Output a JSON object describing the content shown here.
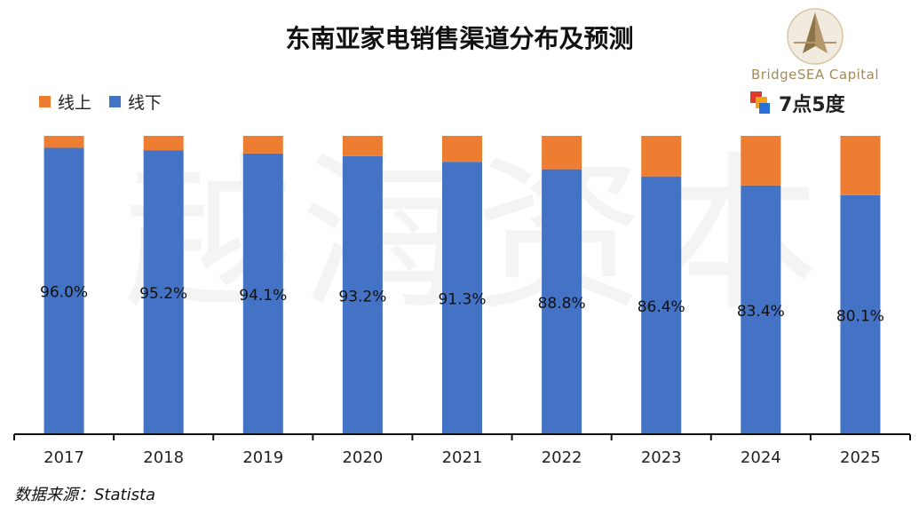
{
  "chart_data": {
    "type": "bar",
    "stacked": true,
    "normalized": true,
    "title": "东南亚家电销售渠道分布及预测",
    "categories": [
      "2017",
      "2018",
      "2019",
      "2020",
      "2021",
      "2022",
      "2023",
      "2024",
      "2025"
    ],
    "series": [
      {
        "name": "线上",
        "color": "#ED7D31",
        "values": [
          4.0,
          4.8,
          5.9,
          6.8,
          8.7,
          11.2,
          13.6,
          16.6,
          19.9
        ]
      },
      {
        "name": "线下",
        "color": "#4472C4",
        "values": [
          96.0,
          95.2,
          94.1,
          93.2,
          91.3,
          88.8,
          86.4,
          83.4,
          80.1
        ]
      }
    ],
    "data_labels": [
      "96.0%",
      "95.2%",
      "94.1%",
      "93.2%",
      "91.3%",
      "88.8%",
      "86.4%",
      "83.4%",
      "80.1%"
    ],
    "ylim": [
      0,
      100
    ],
    "xlabel": "",
    "ylabel": "",
    "legend_position": "top-left",
    "grid": false
  },
  "legend": [
    {
      "label": "线上",
      "color": "#ED7D31"
    },
    {
      "label": "线下",
      "color": "#4472C4"
    }
  ],
  "logo": {
    "brand": "BridgeSEA Capital",
    "secondary": "7点5度"
  },
  "watermark": "越海资本",
  "source": "数据来源：Statista"
}
